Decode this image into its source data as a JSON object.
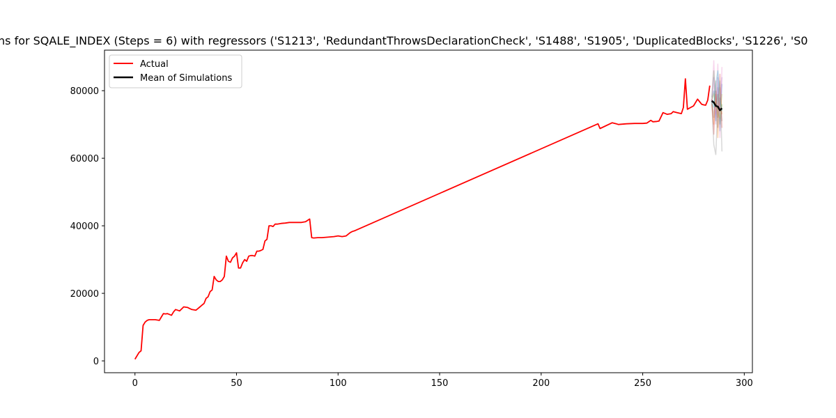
{
  "chart_data": {
    "type": "line",
    "title": "ns for SQALE_INDEX (Steps = 6) with regressors ('S1213', 'RedundantThrowsDeclarationCheck', 'S1488', 'S1905', 'DuplicatedBlocks', 'S1226', 'S0",
    "xlabel": "",
    "ylabel": "",
    "xlim": [
      -15,
      304
    ],
    "ylim": [
      -3500,
      92000
    ],
    "xticks": [
      0,
      50,
      100,
      150,
      200,
      250,
      300
    ],
    "yticks": [
      0,
      20000,
      40000,
      60000,
      80000
    ],
    "grid": false,
    "legend_position": "top-left",
    "colors": {
      "actual": "#ff0000",
      "mean": "#000000"
    },
    "legend": [
      {
        "label": "Actual",
        "color": "#ff0000"
      },
      {
        "label": "Mean of Simulations",
        "color": "#000000"
      }
    ],
    "series": [
      {
        "name": "Actual",
        "color": "#ff0000",
        "x": [
          0,
          2,
          3,
          4,
          5,
          6,
          7,
          8,
          9,
          10,
          12,
          13,
          14,
          15,
          16,
          18,
          19,
          20,
          21,
          22,
          24,
          26,
          27,
          28,
          30,
          31,
          32,
          33,
          34,
          35,
          36,
          37,
          38,
          39,
          40,
          41,
          42,
          43,
          44,
          45,
          46,
          47,
          48,
          49,
          50,
          51,
          52,
          53,
          54,
          55,
          56,
          57,
          58,
          59,
          60,
          61,
          62,
          63,
          64,
          65,
          66,
          67,
          68,
          69,
          70,
          72,
          74,
          76,
          78,
          80,
          82,
          84,
          86,
          87,
          88,
          90,
          92,
          94,
          96,
          98,
          100,
          102,
          104,
          105,
          106,
          107,
          108,
          228,
          229,
          235,
          237,
          238,
          240,
          242,
          246,
          250,
          252,
          254,
          255,
          257,
          258,
          260,
          262,
          264,
          265,
          267,
          269,
          270,
          271,
          272,
          275,
          277,
          279,
          280,
          281,
          282,
          283
        ],
        "y": [
          500,
          2500,
          3000,
          10500,
          11500,
          12000,
          12200,
          12200,
          12200,
          12200,
          12000,
          13000,
          14000,
          13900,
          14000,
          13500,
          14500,
          15200,
          15000,
          14800,
          16000,
          15800,
          15500,
          15200,
          15000,
          15500,
          16000,
          16500,
          17000,
          18500,
          19000,
          20500,
          21000,
          25000,
          24000,
          23500,
          23500,
          24000,
          25000,
          31000,
          29500,
          29200,
          30500,
          31000,
          32000,
          27500,
          27500,
          29000,
          30000,
          29500,
          31000,
          31200,
          31200,
          31000,
          32500,
          32500,
          32700,
          33000,
          35500,
          36000,
          40000,
          40000,
          39800,
          40500,
          40500,
          40700,
          40800,
          41000,
          41000,
          41000,
          41000,
          41200,
          42000,
          36500,
          36400,
          36500,
          36500,
          36600,
          36700,
          36800,
          37000,
          36800,
          37000,
          37500,
          38000,
          38300,
          38500,
          70200,
          68800,
          70500,
          70200,
          70000,
          70100,
          70200,
          70300,
          70300,
          70400,
          71200,
          70800,
          70900,
          71000,
          73500,
          73000,
          73200,
          73800,
          73500,
          73200,
          75000,
          83500,
          74500,
          75500,
          77500,
          76000,
          75800,
          75700,
          77200,
          81500
        ]
      },
      {
        "name": "Mean of Simulations",
        "color": "#000000",
        "x": [
          284,
          285,
          286,
          287,
          288,
          289
        ],
        "y": [
          77000,
          76500,
          75500,
          75300,
          74200,
          74800
        ]
      }
    ],
    "simulations": {
      "x": [
        284,
        285,
        286,
        287,
        288,
        289
      ],
      "colors": [
        "#1f77b4",
        "#ff7f0e",
        "#2ca02c",
        "#d62728",
        "#9467bd",
        "#8c564b",
        "#e377c2",
        "#7f7f7f",
        "#bcbd22",
        "#17becf"
      ],
      "paths": [
        [
          77000,
          80000,
          71000,
          84000,
          68000,
          82000
        ],
        [
          76000,
          70000,
          79000,
          66000,
          81000,
          73000
        ],
        [
          78000,
          86000,
          75000,
          79000,
          70000,
          76000
        ],
        [
          77500,
          67000,
          80000,
          72000,
          85000,
          69000
        ],
        [
          76500,
          84000,
          70000,
          81000,
          74000,
          84000
        ],
        [
          77200,
          72000,
          83000,
          69000,
          78000,
          71000
        ],
        [
          76800,
          89000,
          73000,
          88000,
          66000,
          87000
        ],
        [
          77000,
          64000,
          61000,
          76000,
          83000,
          62000
        ],
        [
          77300,
          79000,
          76000,
          73000,
          72000,
          79000
        ],
        [
          76700,
          75000,
          82000,
          86000,
          77000,
          74000
        ]
      ]
    }
  }
}
